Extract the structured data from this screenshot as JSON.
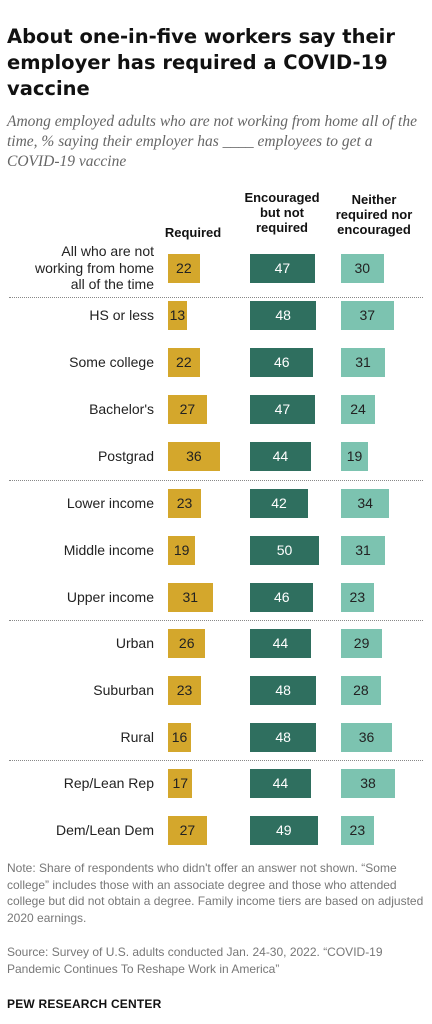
{
  "title": "About one-in-five workers say their employer has required a COVID-19 vaccine",
  "subtitle": "Among employed adults who are not working from home all of the time, % saying their employer has ____ employees to get a COVID-19 vaccine",
  "note": "Note: Share of respondents who didn't offer an answer not shown. “Some college” includes those with an associate degree and those who attended college but did not obtain a degree. Family income tiers are based on adjusted 2020 earnings.",
  "source": "Source: Survey of U.S. adults conducted Jan. 24-30, 2022. “COVID-19 Pandemic Continues To Reshape Work in America”",
  "brand": "PEW RESEARCH CENTER",
  "colors": {
    "required": "#d4a72c",
    "encouraged": "#2f6f5f",
    "neither": "#7cc3b0"
  },
  "chart_data": {
    "type": "bar",
    "series": [
      {
        "name": "Required",
        "values": [
          22,
          13,
          22,
          27,
          36,
          23,
          19,
          31,
          26,
          23,
          16,
          17,
          27
        ]
      },
      {
        "name": "Encouraged but not required",
        "values": [
          47,
          48,
          46,
          47,
          44,
          42,
          50,
          46,
          44,
          48,
          48,
          44,
          49
        ]
      },
      {
        "name": "Neither required nor encouraged",
        "values": [
          30,
          37,
          31,
          24,
          19,
          34,
          31,
          23,
          29,
          28,
          36,
          38,
          23
        ]
      }
    ],
    "categories": [
      "All who are not working from home all of the time",
      "HS or less",
      "Some college",
      "Bachelor's",
      "Postgrad",
      "Lower income",
      "Middle income",
      "Upper income",
      "Urban",
      "Suburban",
      "Rural",
      "Rep/Lean Rep",
      "Dem/Lean Dem"
    ],
    "category_lines": [
      [
        "All who are not",
        "working from home",
        "all of the time"
      ],
      [
        "HS or less"
      ],
      [
        "Some college"
      ],
      [
        "Bachelor's"
      ],
      [
        "Postgrad"
      ],
      [
        "Lower income"
      ],
      [
        "Middle income"
      ],
      [
        "Upper income"
      ],
      [
        "Urban"
      ],
      [
        "Suburban"
      ],
      [
        "Rural"
      ],
      [
        "Rep/Lean Rep"
      ],
      [
        "Dem/Lean Dem"
      ]
    ],
    "groups_after": [
      0,
      4,
      7,
      10
    ]
  }
}
